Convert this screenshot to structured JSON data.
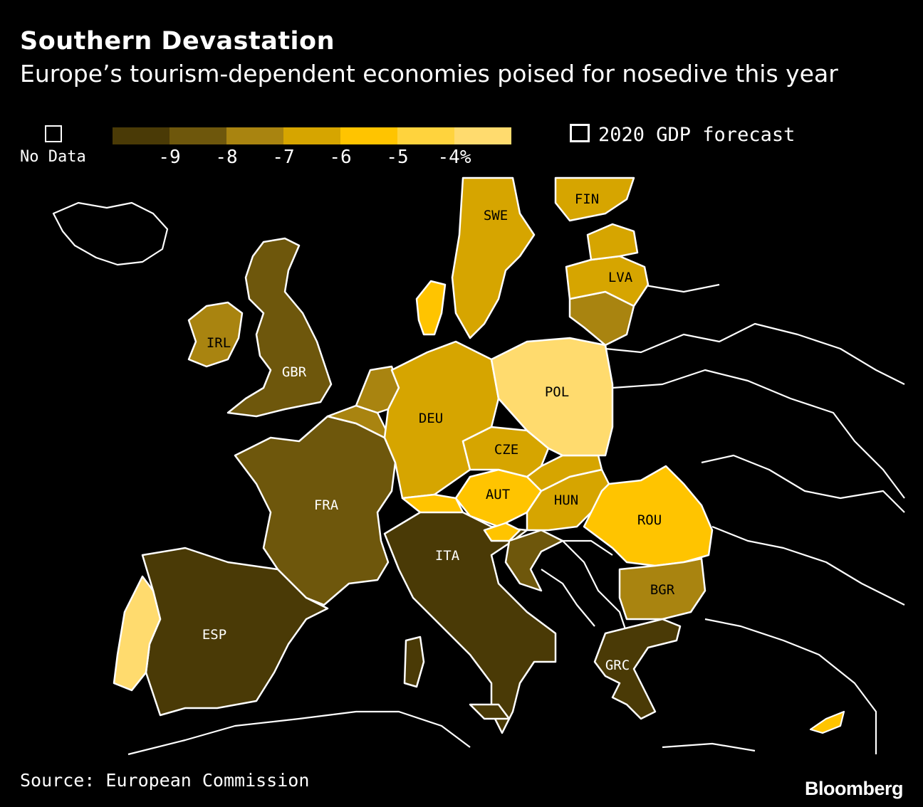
{
  "header": {
    "title": "Southern Devastation",
    "subtitle": "Europe’s tourism-dependent economies poised for nosedive this year"
  },
  "legend": {
    "no_data_label": "No Data",
    "scale_colors": [
      "#4a3a06",
      "#6e570c",
      "#a98410",
      "#d6a500",
      "#ffc400",
      "#ffd33d",
      "#ffdb6e"
    ],
    "tick_labels": [
      "-9",
      "-8",
      "-7",
      "-6",
      "-5",
      "-4%"
    ],
    "series_label": "2020 GDP forecast"
  },
  "map": {
    "countries": [
      {
        "code": "ESP",
        "label": "ESP",
        "color": "#4a3a06"
      },
      {
        "code": "ITA",
        "label": "ITA",
        "color": "#4a3a06"
      },
      {
        "code": "FRA",
        "label": "FRA",
        "color": "#6e570c"
      },
      {
        "code": "GBR",
        "label": "GBR",
        "color": "#6e570c"
      },
      {
        "code": "GRC",
        "label": "GRC",
        "color": "#4a3a06"
      },
      {
        "code": "IRL",
        "label": "IRL",
        "color": "#a98410"
      },
      {
        "code": "DEU",
        "label": "DEU",
        "color": "#d6a500"
      },
      {
        "code": "SWE",
        "label": "SWE",
        "color": "#d6a500"
      },
      {
        "code": "FIN",
        "label": "FIN",
        "color": "#d6a500"
      },
      {
        "code": "LVA",
        "label": "LVA",
        "color": "#d6a500"
      },
      {
        "code": "POL",
        "label": "POL",
        "color": "#ffdb6e"
      },
      {
        "code": "CZE",
        "label": "CZE",
        "color": "#d6a500"
      },
      {
        "code": "AUT",
        "label": "AUT",
        "color": "#ffc400"
      },
      {
        "code": "HUN",
        "label": "HUN",
        "color": "#d6a500"
      },
      {
        "code": "ROU",
        "label": "ROU",
        "color": "#ffc400"
      },
      {
        "code": "BGR",
        "label": "BGR",
        "color": "#a98410"
      }
    ]
  },
  "footer": {
    "source": "Source: European Commission",
    "brand": "Bloomberg"
  }
}
